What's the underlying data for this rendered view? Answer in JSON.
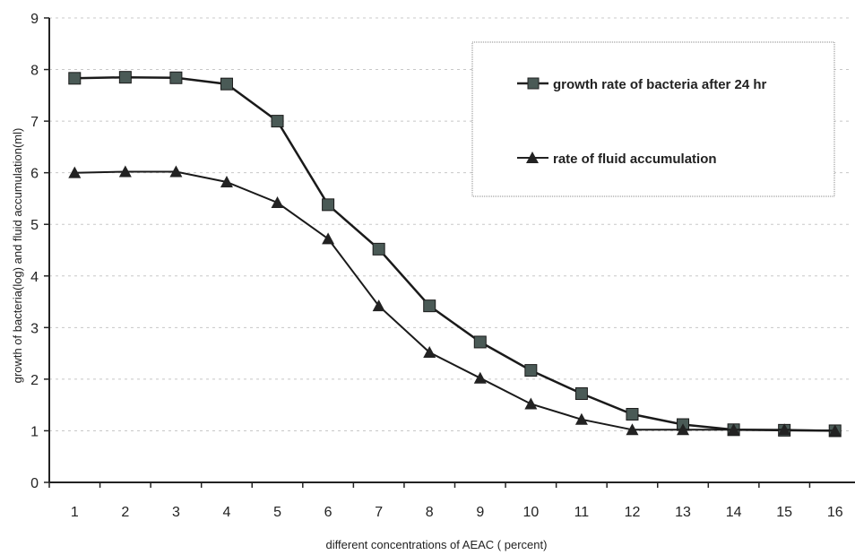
{
  "chart_data": {
    "type": "line",
    "title": "",
    "xlabel": "different concentrations of AEAC ( percent)",
    "ylabel": "growth of bacteria(log)  and fluid accumulation(ml)",
    "categories": [
      "1",
      "2",
      "3",
      "4",
      "5",
      "6",
      "7",
      "8",
      "9",
      "10",
      "11",
      "12",
      "13",
      "14",
      "15",
      "16"
    ],
    "ylim": [
      0,
      9
    ],
    "yticks": [
      "0",
      "1",
      "2",
      "3",
      "4",
      "5",
      "6",
      "7",
      "8",
      "9"
    ],
    "grid": "horizontal dashed",
    "legend_position": "top-right",
    "series": [
      {
        "name": "growth rate of bacteria after 24 hr",
        "marker": "square",
        "color": "#3a3a3a",
        "values": [
          7.83,
          7.85,
          7.84,
          7.72,
          7.0,
          5.38,
          4.52,
          3.42,
          2.72,
          2.17,
          1.72,
          1.32,
          1.12,
          1.02,
          1.01,
          1.0
        ]
      },
      {
        "name": "rate of fluid accumulation",
        "marker": "triangle",
        "color": "#3a3a3a",
        "values": [
          6.0,
          6.02,
          6.02,
          5.82,
          5.42,
          4.72,
          3.42,
          2.52,
          2.02,
          1.52,
          1.22,
          1.02,
          1.02,
          1.02,
          1.02,
          1.0
        ]
      }
    ]
  }
}
